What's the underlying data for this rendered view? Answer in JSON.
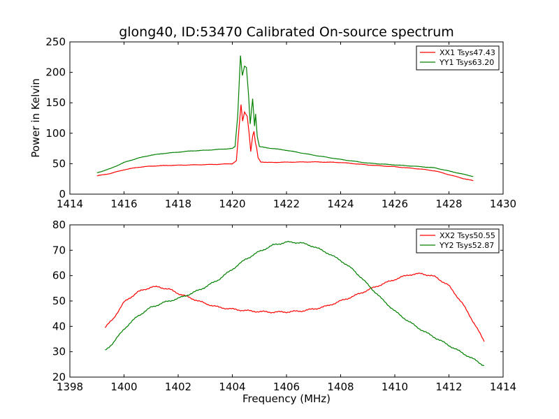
{
  "chart_data": [
    {
      "type": "line",
      "title": "glong40, ID:53470 Calibrated On-source spectrum",
      "xlabel": "",
      "ylabel": "Power in Kelvin",
      "xlim": [
        1414,
        1430
      ],
      "ylim": [
        0,
        250
      ],
      "xticks": [
        "1414",
        "1416",
        "1418",
        "1420",
        "1422",
        "1424",
        "1426",
        "1428",
        "1430"
      ],
      "yticks": [
        "0",
        "50",
        "100",
        "150",
        "200",
        "250"
      ],
      "grid": false,
      "legend_position": "top-right",
      "series": [
        {
          "name": "XX1 Tsys47.43",
          "color": "#ff0000",
          "points": [
            [
              1415.0,
              30
            ],
            [
              1415.5,
              34
            ],
            [
              1416.0,
              40
            ],
            [
              1416.5,
              44
            ],
            [
              1417.0,
              46
            ],
            [
              1417.5,
              47
            ],
            [
              1418.0,
              47.5
            ],
            [
              1418.5,
              48
            ],
            [
              1419.0,
              48.5
            ],
            [
              1419.5,
              49
            ],
            [
              1420.0,
              50
            ],
            [
              1420.15,
              55
            ],
            [
              1420.25,
              110
            ],
            [
              1420.32,
              147
            ],
            [
              1420.38,
              120
            ],
            [
              1420.45,
              135
            ],
            [
              1420.55,
              128
            ],
            [
              1420.62,
              100
            ],
            [
              1420.68,
              70
            ],
            [
              1420.75,
              95
            ],
            [
              1420.8,
              103
            ],
            [
              1420.85,
              85
            ],
            [
              1420.9,
              75
            ],
            [
              1420.95,
              60
            ],
            [
              1421.05,
              53
            ],
            [
              1421.3,
              52
            ],
            [
              1422.0,
              52.5
            ],
            [
              1423.0,
              53
            ],
            [
              1424.0,
              52
            ],
            [
              1425.0,
              48
            ],
            [
              1426.0,
              45
            ],
            [
              1427.0,
              41
            ],
            [
              1427.5,
              38
            ],
            [
              1428.0,
              32
            ],
            [
              1428.5,
              26
            ],
            [
              1428.9,
              22
            ]
          ]
        },
        {
          "name": "YY1 Tsys63.20",
          "color": "#008000",
          "points": [
            [
              1415.0,
              35
            ],
            [
              1415.5,
              42
            ],
            [
              1416.0,
              52
            ],
            [
              1416.5,
              59
            ],
            [
              1417.0,
              64
            ],
            [
              1417.5,
              67
            ],
            [
              1418.0,
              69
            ],
            [
              1418.5,
              71
            ],
            [
              1419.0,
              72
            ],
            [
              1419.5,
              73.5
            ],
            [
              1420.0,
              75
            ],
            [
              1420.1,
              78
            ],
            [
              1420.2,
              130
            ],
            [
              1420.3,
              228
            ],
            [
              1420.37,
              195
            ],
            [
              1420.45,
              210
            ],
            [
              1420.52,
              208
            ],
            [
              1420.6,
              162
            ],
            [
              1420.66,
              115
            ],
            [
              1420.75,
              157
            ],
            [
              1420.82,
              112
            ],
            [
              1420.86,
              132
            ],
            [
              1420.92,
              95
            ],
            [
              1421.0,
              78
            ],
            [
              1421.3,
              76
            ],
            [
              1422.0,
              72
            ],
            [
              1423.0,
              64
            ],
            [
              1424.0,
              57
            ],
            [
              1425.0,
              51
            ],
            [
              1426.0,
              48
            ],
            [
              1427.0,
              45
            ],
            [
              1427.5,
              43
            ],
            [
              1428.0,
              38
            ],
            [
              1428.5,
              33
            ],
            [
              1428.9,
              29
            ]
          ]
        }
      ]
    },
    {
      "type": "line",
      "title": "",
      "xlabel": "Frequency (MHz)",
      "ylabel": "",
      "xlim": [
        1398,
        1414
      ],
      "ylim": [
        20,
        80
      ],
      "xticks": [
        "1398",
        "1400",
        "1402",
        "1404",
        "1406",
        "1408",
        "1410",
        "1412",
        "1414"
      ],
      "yticks": [
        "20",
        "30",
        "40",
        "50",
        "60",
        "70",
        "80"
      ],
      "grid": false,
      "legend_position": "top-right",
      "series": [
        {
          "name": "XX2 Tsys50.55",
          "color": "#ff0000",
          "points": [
            [
              1399.3,
              39.5
            ],
            [
              1399.6,
              43
            ],
            [
              1400.0,
              49.5
            ],
            [
              1400.5,
              53.5
            ],
            [
              1401.0,
              55.5
            ],
            [
              1401.3,
              55.5
            ],
            [
              1401.7,
              54.5
            ],
            [
              1402.0,
              53
            ],
            [
              1402.5,
              51
            ],
            [
              1403.0,
              49
            ],
            [
              1403.5,
              47.5
            ],
            [
              1404.0,
              46.8
            ],
            [
              1404.5,
              46.2
            ],
            [
              1405.0,
              45.8
            ],
            [
              1405.5,
              45.6
            ],
            [
              1406.0,
              45.7
            ],
            [
              1406.5,
              46
            ],
            [
              1407.0,
              46.8
            ],
            [
              1407.5,
              48
            ],
            [
              1408.0,
              50
            ],
            [
              1408.5,
              52
            ],
            [
              1409.0,
              54.3
            ],
            [
              1409.5,
              56.5
            ],
            [
              1410.0,
              58.5
            ],
            [
              1410.5,
              60.3
            ],
            [
              1411.0,
              60.8
            ],
            [
              1411.5,
              59.5
            ],
            [
              1412.0,
              56
            ],
            [
              1412.5,
              49
            ],
            [
              1413.0,
              40
            ],
            [
              1413.3,
              34
            ]
          ]
        },
        {
          "name": "YY2 Tsys52.87",
          "color": "#008000",
          "points": [
            [
              1399.3,
              30.5
            ],
            [
              1399.6,
              33.5
            ],
            [
              1400.0,
              39
            ],
            [
              1400.5,
              44
            ],
            [
              1401.0,
              47.5
            ],
            [
              1401.5,
              49.5
            ],
            [
              1402.0,
              51
            ],
            [
              1402.5,
              53
            ],
            [
              1403.0,
              55.5
            ],
            [
              1403.5,
              58.5
            ],
            [
              1404.0,
              62.5
            ],
            [
              1404.5,
              66.5
            ],
            [
              1405.0,
              69.5
            ],
            [
              1405.5,
              72
            ],
            [
              1406.0,
              73.2
            ],
            [
              1406.5,
              73
            ],
            [
              1407.0,
              71.5
            ],
            [
              1407.5,
              69
            ],
            [
              1408.0,
              66
            ],
            [
              1408.5,
              62
            ],
            [
              1409.0,
              56.5
            ],
            [
              1409.5,
              51
            ],
            [
              1410.0,
              46
            ],
            [
              1410.5,
              42
            ],
            [
              1411.0,
              38.5
            ],
            [
              1411.5,
              35.5
            ],
            [
              1412.0,
              32.5
            ],
            [
              1412.5,
              29.5
            ],
            [
              1413.0,
              26.5
            ],
            [
              1413.3,
              24.5
            ]
          ]
        }
      ]
    }
  ]
}
